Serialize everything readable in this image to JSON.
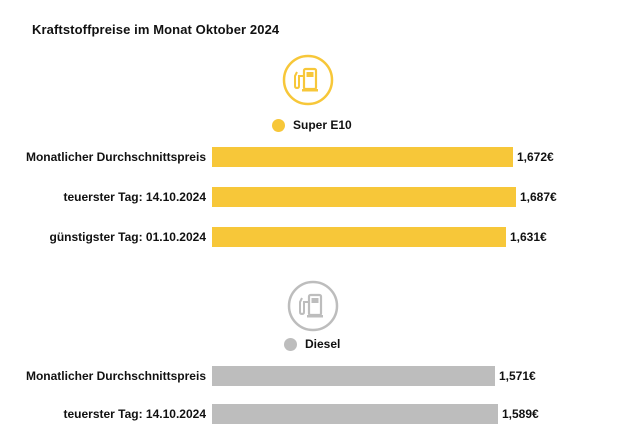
{
  "title": "Kraftstoffpreise im Monat Oktober 2024",
  "colors": {
    "super": "#f7c739",
    "diesel": "#bdbdbd"
  },
  "icons": {
    "super": "fuel-pump-icon",
    "diesel": "fuel-pump-icon"
  },
  "chart_data": [
    {
      "type": "bar",
      "orientation": "horizontal",
      "legend": "Super E10",
      "categories": [
        "Monatlicher Durchschnittspreis",
        "teuerster Tag: 14.10.2024",
        "günstigster Tag: 01.10.2024"
      ],
      "values": [
        1.672,
        1.687,
        1.631
      ],
      "value_labels": [
        "1,672€",
        "1,687€",
        "1,631€"
      ],
      "color": "#f7c739"
    },
    {
      "type": "bar",
      "orientation": "horizontal",
      "legend": "Diesel",
      "categories": [
        "Monatlicher Durchschnittspreis",
        "teuerster Tag: 14.10.2024"
      ],
      "values": [
        1.571,
        1.589
      ],
      "value_labels": [
        "1,571€",
        "1,589€"
      ],
      "color": "#bdbdbd"
    }
  ]
}
